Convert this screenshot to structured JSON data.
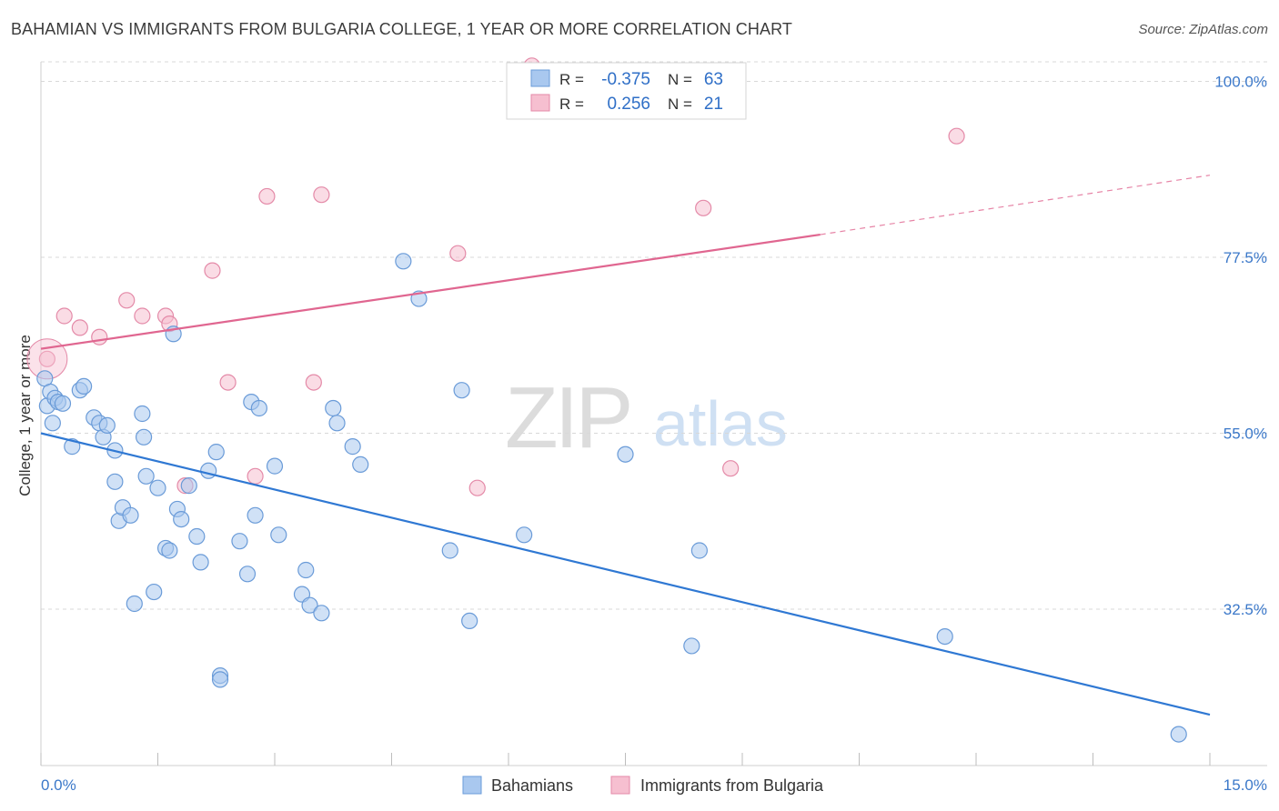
{
  "title": "BAHAMIAN VS IMMIGRANTS FROM BULGARIA COLLEGE, 1 YEAR OR MORE CORRELATION CHART",
  "source": "Source: ZipAtlas.com",
  "watermark": {
    "zip": "ZIP",
    "atlas": "atlas"
  },
  "legend_stats": {
    "r_label": "R =",
    "n_label": "N =",
    "rows": [
      {
        "r": "-0.375",
        "n": "63"
      },
      {
        "r": "0.256",
        "n": "21"
      }
    ]
  },
  "bottom_legend": [
    "Bahamians",
    "Immigrants from Bulgaria"
  ],
  "colors": {
    "blue_fill": "#a9c8ef",
    "blue_stroke": "#6a9bd8",
    "blue_line": "#2f78d3",
    "pink_fill": "#f6bfd0",
    "pink_stroke": "#e48aa8",
    "pink_line": "#e06690",
    "tick_label": "#3b78c9",
    "grid": "#d8d8d8"
  },
  "chart_data": {
    "type": "scatter",
    "title": "BAHAMIAN VS IMMIGRANTS FROM BULGARIA COLLEGE, 1 YEAR OR MORE CORRELATION CHART",
    "xlabel": "",
    "ylabel": "College, 1 year or more",
    "xlim": [
      0,
      15
    ],
    "ylim": [
      12.5,
      102.5
    ],
    "x_tick_labels": [
      "0.0%",
      "15.0%"
    ],
    "y_ticks": [
      32.5,
      55.0,
      77.5,
      100.0
    ],
    "y_tick_labels": [
      "32.5%",
      "55.0%",
      "77.5%",
      "100.0%"
    ],
    "grid": "horizontal dashed",
    "legend_position": "top-center",
    "series": [
      {
        "name": "Bahamians",
        "color": "#a9c8ef",
        "points": [
          [
            0.05,
            62.0
          ],
          [
            0.08,
            58.5
          ],
          [
            0.12,
            60.3
          ],
          [
            0.15,
            56.3
          ],
          [
            0.18,
            59.5
          ],
          [
            0.22,
            59.0
          ],
          [
            0.28,
            58.8
          ],
          [
            0.4,
            53.3
          ],
          [
            0.5,
            60.5
          ],
          [
            0.55,
            61.0
          ],
          [
            0.68,
            57.0
          ],
          [
            0.75,
            56.3
          ],
          [
            0.8,
            54.5
          ],
          [
            0.85,
            56.0
          ],
          [
            0.95,
            52.8
          ],
          [
            0.95,
            48.8
          ],
          [
            1.0,
            43.8
          ],
          [
            1.05,
            45.5
          ],
          [
            1.15,
            44.5
          ],
          [
            1.2,
            33.2
          ],
          [
            1.3,
            57.5
          ],
          [
            1.32,
            54.5
          ],
          [
            1.35,
            49.5
          ],
          [
            1.45,
            34.7
          ],
          [
            1.5,
            48.0
          ],
          [
            1.6,
            40.3
          ],
          [
            1.65,
            40.0
          ],
          [
            1.7,
            67.7
          ],
          [
            1.75,
            45.3
          ],
          [
            1.8,
            44.0
          ],
          [
            1.9,
            48.3
          ],
          [
            2.0,
            41.8
          ],
          [
            2.05,
            38.5
          ],
          [
            2.15,
            50.2
          ],
          [
            2.25,
            52.6
          ],
          [
            2.3,
            24.0
          ],
          [
            2.3,
            23.5
          ],
          [
            2.55,
            41.2
          ],
          [
            2.7,
            59.0
          ],
          [
            2.75,
            44.5
          ],
          [
            2.8,
            58.2
          ],
          [
            3.0,
            50.8
          ],
          [
            3.05,
            42.0
          ],
          [
            3.35,
            34.4
          ],
          [
            3.45,
            33.0
          ],
          [
            3.75,
            58.2
          ],
          [
            3.8,
            56.3
          ],
          [
            4.0,
            53.3
          ],
          [
            4.1,
            51.0
          ],
          [
            4.65,
            77.0
          ],
          [
            4.85,
            72.2
          ],
          [
            5.25,
            40.0
          ],
          [
            5.4,
            60.5
          ],
          [
            5.5,
            31.0
          ],
          [
            6.2,
            42.0
          ],
          [
            7.5,
            52.3
          ],
          [
            8.35,
            27.8
          ],
          [
            8.45,
            40.0
          ],
          [
            11.6,
            29.0
          ],
          [
            14.6,
            16.5
          ],
          [
            2.65,
            37.0
          ],
          [
            3.6,
            32.0
          ],
          [
            3.4,
            37.5
          ]
        ]
      },
      {
        "name": "Immigrants from Bulgaria",
        "color": "#f6bfd0",
        "points": [
          [
            0.08,
            64.5
          ],
          [
            0.3,
            70.0
          ],
          [
            0.5,
            68.5
          ],
          [
            0.75,
            67.3
          ],
          [
            1.1,
            72.0
          ],
          [
            1.3,
            70.0
          ],
          [
            1.6,
            70.0
          ],
          [
            1.65,
            69.0
          ],
          [
            1.85,
            48.3
          ],
          [
            2.2,
            75.8
          ],
          [
            2.4,
            61.5
          ],
          [
            2.75,
            49.5
          ],
          [
            2.9,
            85.3
          ],
          [
            3.5,
            61.5
          ],
          [
            3.6,
            85.5
          ],
          [
            5.35,
            78.0
          ],
          [
            5.6,
            48.0
          ],
          [
            6.3,
            102.0
          ],
          [
            8.5,
            83.8
          ],
          [
            8.85,
            50.5
          ],
          [
            11.75,
            93.0
          ]
        ]
      }
    ],
    "trend_lines": [
      {
        "series": "Bahamians",
        "x": [
          0.0,
          15.0
        ],
        "y": [
          55.0,
          19.0
        ]
      },
      {
        "series": "Immigrants from Bulgaria",
        "x": [
          0.0,
          10.0
        ],
        "y": [
          65.8,
          80.4
        ],
        "dashed_extension": {
          "x": [
            10.0,
            15.0
          ],
          "y": [
            80.4,
            88.0
          ]
        }
      }
    ]
  }
}
